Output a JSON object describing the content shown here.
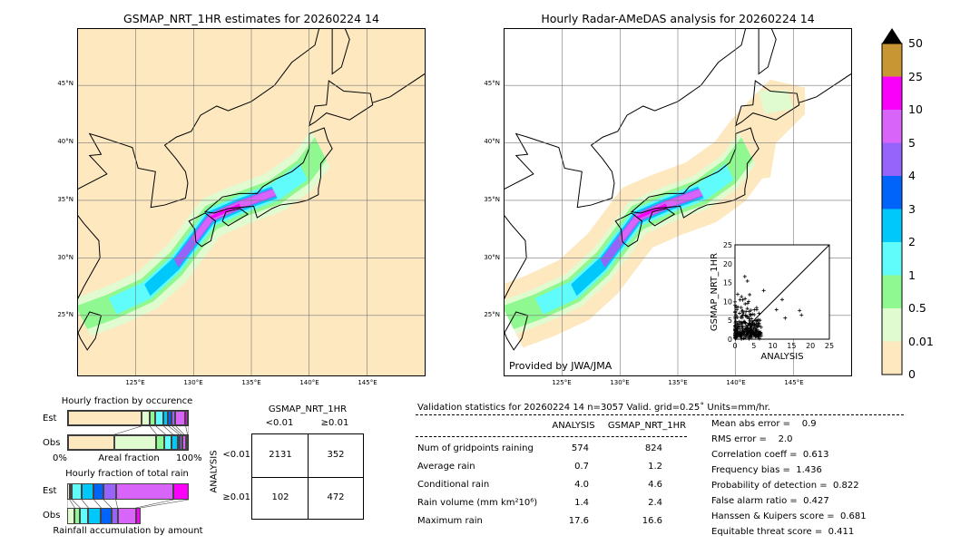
{
  "left_map": {
    "title": "GSMAP_NRT_1HR estimates for 20260224 14",
    "lon_ticks": [
      "125°E",
      "130°E",
      "135°E",
      "140°E",
      "145°E"
    ],
    "lat_ticks": [
      "45°N",
      "40°N",
      "35°N",
      "30°N",
      "25°N"
    ]
  },
  "right_map": {
    "title": "Hourly Radar-AMeDAS analysis for 20260224 14",
    "lon_ticks": [
      "125°E",
      "130°E",
      "135°E",
      "140°E",
      "145°E"
    ],
    "lat_ticks": [
      "45°N",
      "40°N",
      "35°N",
      "30°N",
      "25°N"
    ],
    "credit": "Provided by JWA/JMA"
  },
  "colorbar": {
    "labels": [
      "0",
      "0.01",
      "0.5",
      "1",
      "2",
      "3",
      "4",
      "5",
      "10",
      "25",
      "50"
    ],
    "colors": [
      "#fde8c0",
      "#e0fbd0",
      "#90f890",
      "#60fbfb",
      "#00c8fa",
      "#0064fa",
      "#9664fa",
      "#d864fa",
      "#fa00fa",
      "#c89632"
    ],
    "extend_color": "#000000"
  },
  "chart_data": [
    {
      "type": "scatter",
      "xlabel": "ANALYSIS",
      "ylabel": "GSMAP_NRT_1HR",
      "xlim": [
        0,
        25
      ],
      "ylim": [
        0,
        25
      ],
      "x_ticks": [
        "0",
        "5",
        "10",
        "15",
        "20",
        "25"
      ],
      "y_ticks": [
        "0",
        "5",
        "10",
        "15",
        "20",
        "25"
      ],
      "marker": "+",
      "reference_line": "y=x",
      "notable_points": [
        [
          17.1,
          7.6
        ],
        [
          17.6,
          6.4
        ],
        [
          12.5,
          10.5
        ],
        [
          13.3,
          5.6
        ],
        [
          11,
          7.8
        ],
        [
          2.6,
          16.6
        ],
        [
          3.3,
          15.4
        ],
        [
          7.6,
          12.9
        ]
      ]
    },
    {
      "type": "bar",
      "title": "Hourly fraction by occurence",
      "xlabel": "Areal fraction",
      "x_ticks": [
        "0%",
        "100%"
      ],
      "categories": [
        "Est",
        "Obs"
      ],
      "stacked_percent": {
        "Est": [
          61,
          7,
          5,
          6.5,
          4,
          3,
          3,
          8,
          2.5
        ],
        "Obs": [
          39,
          34.5,
          7.5,
          6,
          5,
          2,
          2,
          3,
          1
        ]
      }
    },
    {
      "type": "bar",
      "title": "Hourly fraction of total rain",
      "xlabel": "Rainfall accumulation by amount",
      "categories": [
        "Est",
        "Obs"
      ],
      "stacked_percent": {
        "Est": [
          0,
          2,
          2,
          8,
          10,
          8,
          10,
          47.5,
          12.5
        ],
        "Obs": [
          0,
          6.25,
          4.5,
          6.75,
          10.5,
          8.5,
          5,
          15,
          3.75
        ]
      }
    }
  ],
  "contingency": {
    "header": "GSMAP_NRT_1HR",
    "col_labels": [
      "<0.01",
      "≥0.01"
    ],
    "row_axis": "ANALYSIS",
    "row_labels": [
      "<0.01",
      "≥0.01"
    ],
    "cells": [
      [
        "2131",
        "352"
      ],
      [
        "102",
        "472"
      ]
    ]
  },
  "stats": {
    "title": "Validation statistics for 20260224 14  n=3057 Valid. grid=0.25˚ Units=mm/hr.",
    "col_headers": [
      "ANALYSIS",
      "GSMAP_NRT_1HR"
    ],
    "rows": [
      {
        "label": "Num of gridpoints raining",
        "a": "574",
        "g": "824"
      },
      {
        "label": "Average rain",
        "a": "0.7",
        "g": "1.2"
      },
      {
        "label": "Conditional rain",
        "a": "4.0",
        "g": "4.6"
      },
      {
        "label": "Rain volume (mm km²10⁶)",
        "a": "1.4",
        "g": "2.4"
      },
      {
        "label": "Maximum rain",
        "a": "17.6",
        "g": "16.6"
      }
    ],
    "scores": [
      "Mean abs error =    0.9",
      "RMS error =    2.0",
      "Correlation coeff =  0.613",
      "Frequency bias =  1.436",
      "Probability of detection =  0.822",
      "False alarm ratio =  0.427",
      "Hanssen & Kuipers score =  0.681",
      "Equitable threat score =  0.411"
    ]
  }
}
